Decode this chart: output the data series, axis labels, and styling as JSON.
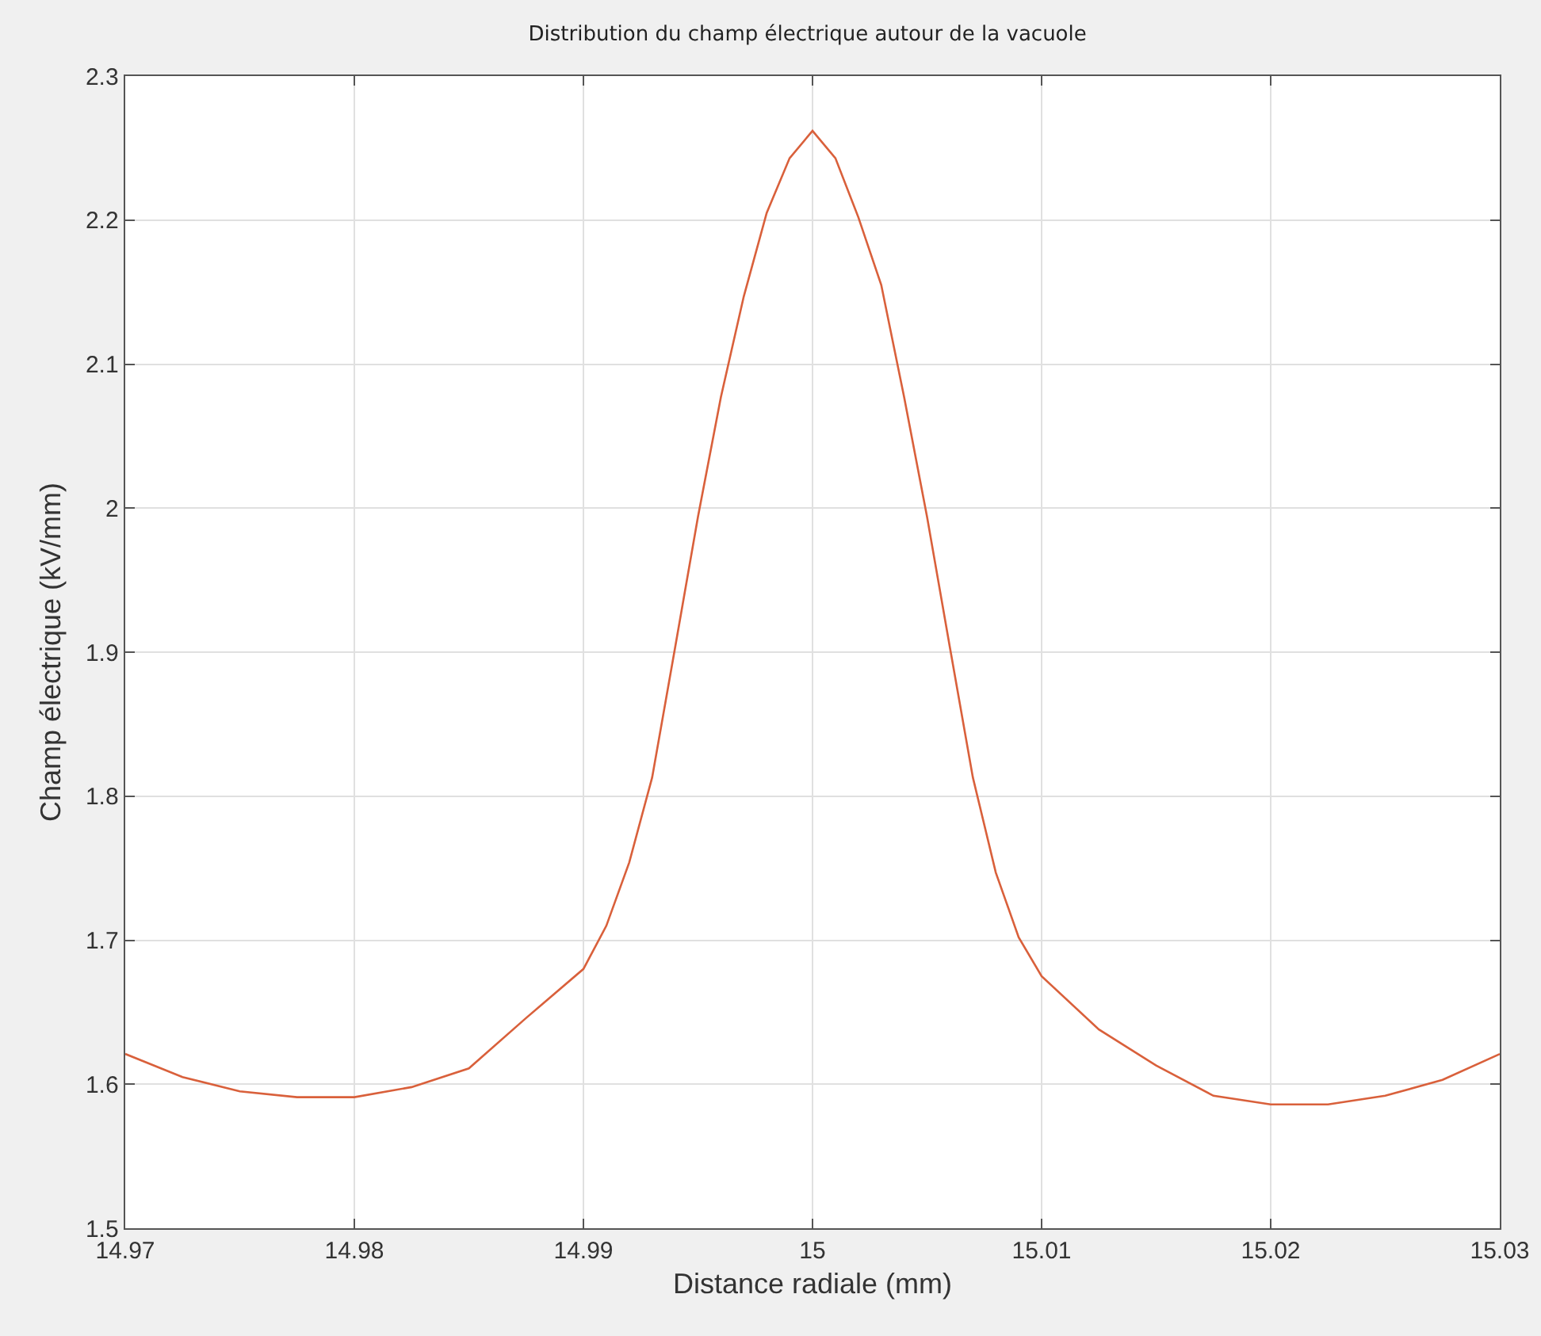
{
  "chart_data": {
    "type": "line",
    "title": "Distribution du champ électrique autour de la vacuole",
    "xlabel": "Distance radiale (mm)",
    "ylabel": "Champ électrique (kV/mm)",
    "x": [
      14.97,
      14.9725,
      14.975,
      14.9775,
      14.98,
      14.9825,
      14.985,
      14.9875,
      14.99,
      14.991,
      14.992,
      14.993,
      14.994,
      14.995,
      14.996,
      14.997,
      14.998,
      14.999,
      15,
      15.001,
      15.002,
      15.003,
      15.004,
      15.005,
      15.006,
      15.007,
      15.008,
      15.009,
      15.01,
      15.0125,
      15.015,
      15.0175,
      15.02,
      15.0225,
      15.025,
      15.0275,
      15.03
    ],
    "series": [
      {
        "color": "#d9603b",
        "values": [
          1.621,
          1.605,
          1.595,
          1.591,
          1.591,
          1.598,
          1.611,
          1.646,
          1.68,
          1.71,
          1.754,
          1.813,
          1.903,
          1.994,
          2.077,
          2.147,
          2.205,
          2.243,
          2.262,
          2.243,
          2.202,
          2.155,
          2.077,
          1.994,
          1.903,
          1.813,
          1.747,
          1.702,
          1.675,
          1.638,
          1.613,
          1.592,
          1.586,
          1.586,
          1.592,
          1.603,
          1.621
        ]
      }
    ],
    "xlim": [
      14.97,
      15.03
    ],
    "xticks": [
      14.97,
      14.98,
      14.99,
      15,
      15.01,
      15.02,
      15.03
    ],
    "ylim": [
      1.5,
      2.3
    ],
    "yticks": [
      1.5,
      1.6,
      1.7,
      1.8,
      1.9,
      2,
      2.1,
      2.2,
      2.3
    ],
    "grid": true
  }
}
